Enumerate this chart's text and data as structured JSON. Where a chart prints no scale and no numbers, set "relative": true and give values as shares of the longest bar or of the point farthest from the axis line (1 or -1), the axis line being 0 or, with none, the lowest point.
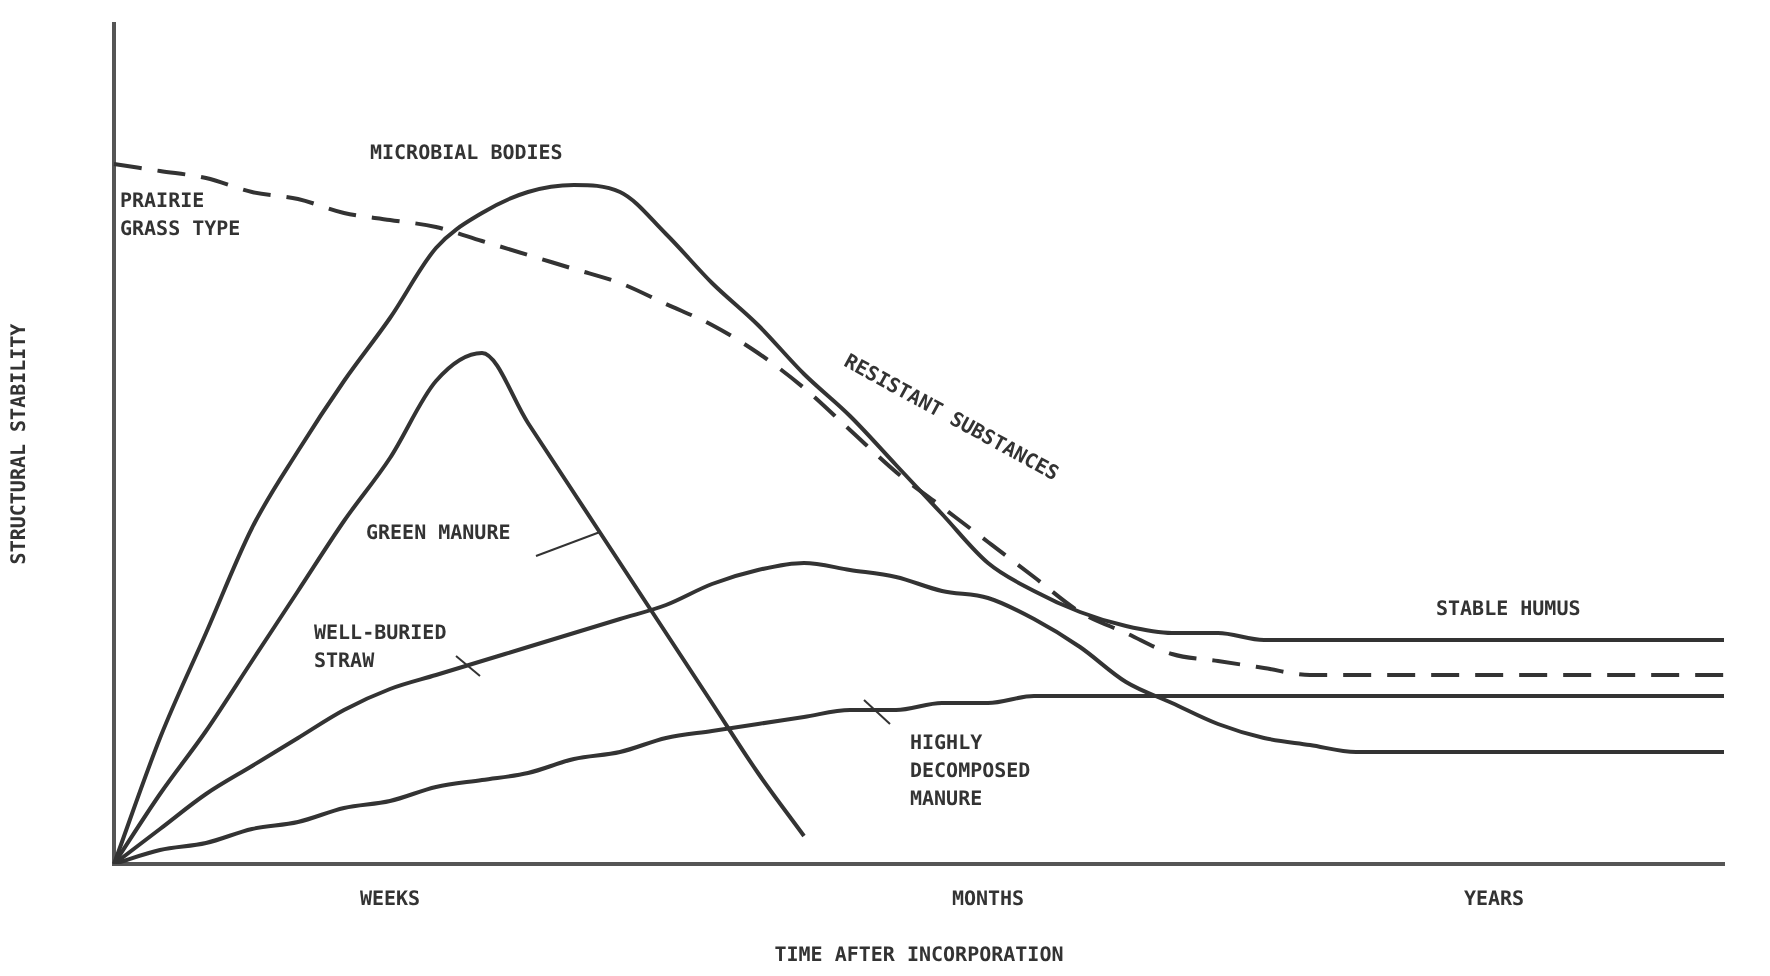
{
  "chart_data": {
    "type": "line",
    "relative": true,
    "xlabel": "TIME AFTER INCORPORATION",
    "ylabel": "STRUCTURAL STABILITY",
    "categories": [
      null,
      null,
      null,
      null,
      null,
      null,
      "WEEKS",
      null,
      null,
      null,
      null,
      null,
      null,
      null,
      null,
      null,
      null,
      null,
      null,
      "MONTHS",
      null,
      null,
      null,
      null,
      null,
      null,
      null,
      null,
      null,
      null,
      "YEARS",
      null,
      null,
      null,
      null,
      null
    ],
    "series": [
      {
        "name": "MICROBIAL BODIES",
        "color": "#333333",
        "values": [
          0,
          0.18,
          0.33,
          0.48,
          0.59,
          0.69,
          0.78,
          0.88,
          0.93,
          0.96,
          0.97,
          0.96,
          0.9,
          0.83,
          0.77,
          0.7,
          0.64,
          0.57,
          0.5,
          0.43,
          0.39,
          0.36,
          0.34,
          0.33,
          0.33,
          0.32,
          0.32,
          0.32,
          0.32,
          0.32,
          0.32,
          0.32,
          0.32,
          0.32,
          0.32,
          0.32
        ]
      },
      {
        "name": "PRAIRIE GRASS TYPE",
        "color": "#333333",
        "line_style": "dashed",
        "values": [
          1,
          0.99,
          0.98,
          0.96,
          0.95,
          0.93,
          0.92,
          0.91,
          0.89,
          0.87,
          0.85,
          0.83,
          0.8,
          0.77,
          0.73,
          0.68,
          0.62,
          0.56,
          0.51,
          0.46,
          0.41,
          0.36,
          0.33,
          0.3,
          0.29,
          0.28,
          0.27,
          0.27,
          0.27,
          0.27,
          0.27,
          0.27,
          0.27,
          0.27,
          0.27,
          0.27
        ]
      },
      {
        "name": "GREEN MANURE",
        "color": "#333333",
        "values": [
          0,
          0.1,
          0.19,
          0.29,
          0.39,
          0.49,
          0.58,
          0.69,
          0.73,
          0.63,
          0.53,
          0.43,
          0.33,
          0.23,
          0.13,
          0.04,
          null,
          null,
          null,
          null,
          null,
          null,
          null,
          null,
          null,
          null,
          null,
          null,
          null,
          null,
          null,
          null,
          null,
          null,
          null,
          null
        ]
      },
      {
        "name": "WELL-BURIED STRAW",
        "color": "#333333",
        "values": [
          0,
          0.05,
          0.1,
          0.14,
          0.18,
          0.22,
          0.25,
          0.27,
          0.29,
          0.31,
          0.33,
          0.35,
          0.37,
          0.4,
          0.42,
          0.43,
          0.42,
          0.41,
          0.39,
          0.38,
          0.35,
          0.31,
          0.26,
          0.23,
          0.2,
          0.18,
          0.17,
          0.16,
          0.16,
          0.16,
          0.16,
          0.16,
          0.16,
          0.16,
          0.16,
          0.16
        ]
      },
      {
        "name": "HIGHLY DECOMPOSED MANURE",
        "color": "#333333",
        "values": [
          0,
          0.02,
          0.03,
          0.05,
          0.06,
          0.08,
          0.09,
          0.11,
          0.12,
          0.13,
          0.15,
          0.16,
          0.18,
          0.19,
          0.2,
          0.21,
          0.22,
          0.22,
          0.23,
          0.23,
          0.24,
          0.24,
          0.24,
          0.24,
          0.24,
          0.24,
          0.24,
          0.24,
          0.24,
          0.24,
          0.24,
          0.24,
          0.24,
          0.24,
          0.24,
          0.24
        ]
      }
    ],
    "annotations": [
      "RESISTANT SUBSTANCES",
      "STABLE HUMUS"
    ],
    "marker": "none",
    "line_style": "solid"
  }
}
